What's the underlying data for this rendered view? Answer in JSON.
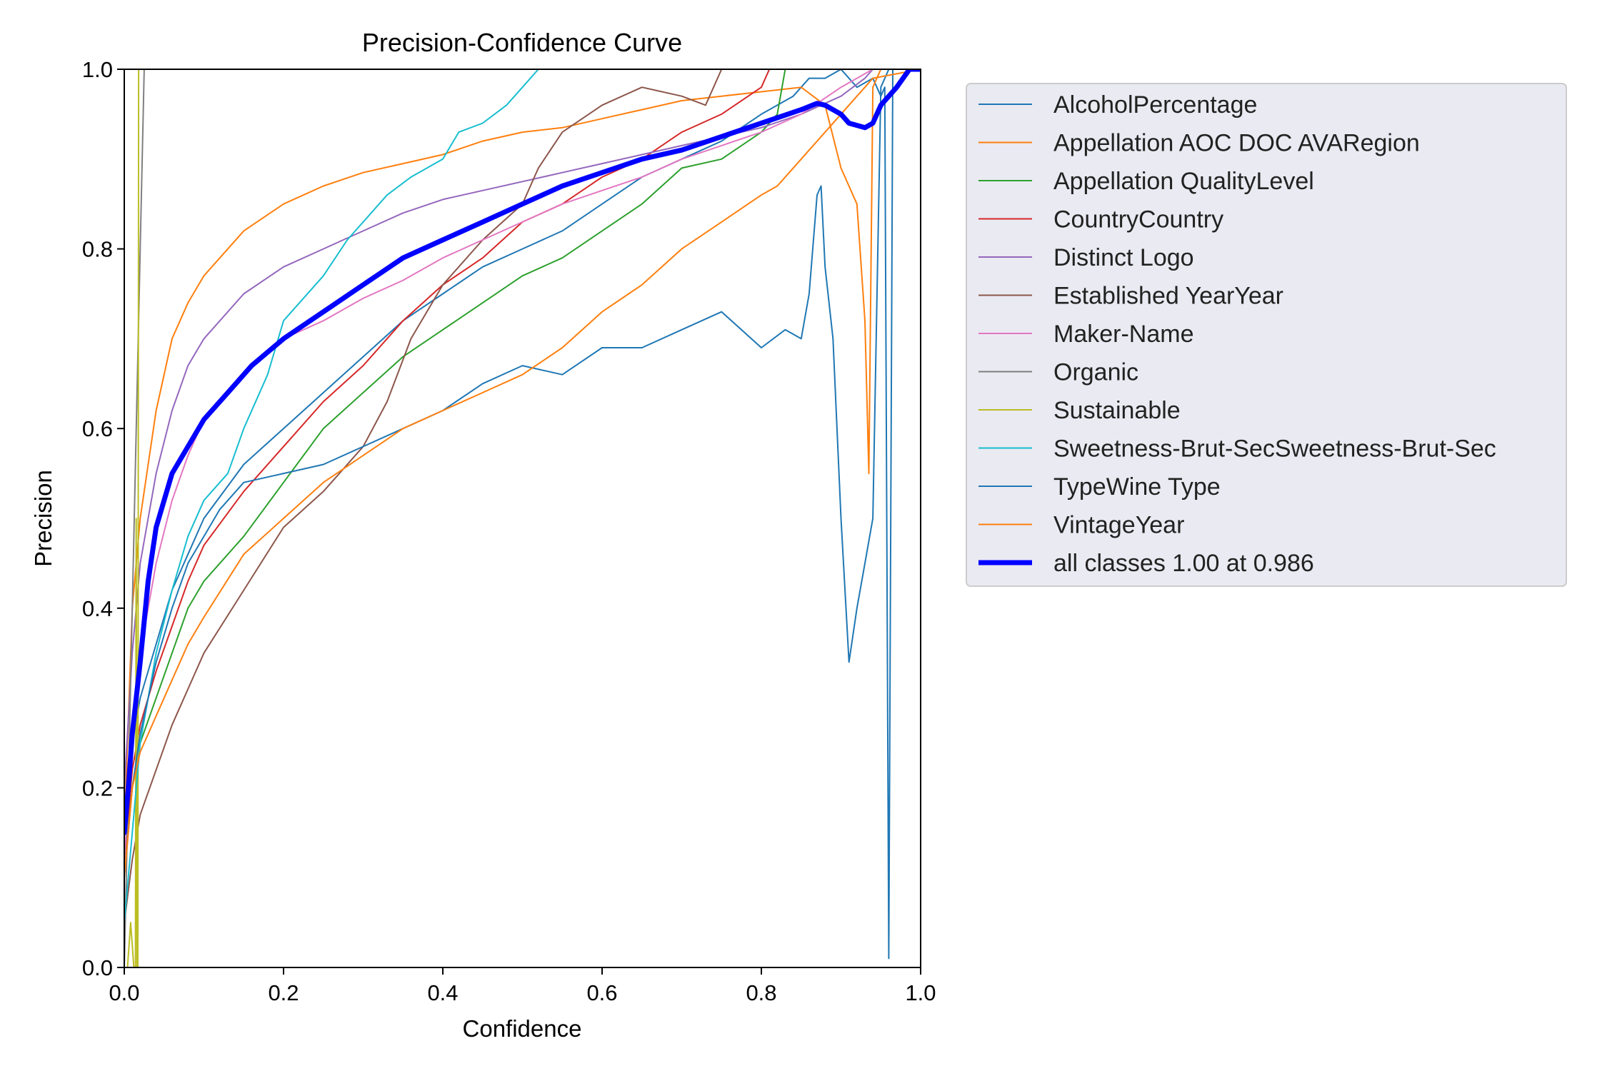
{
  "chart_data": {
    "type": "line",
    "title": "Precision-Confidence Curve",
    "xlabel": "Confidence",
    "ylabel": "Precision",
    "xlim": [
      0,
      1
    ],
    "ylim": [
      0,
      1
    ],
    "xticks": [
      "0.0",
      "0.2",
      "0.4",
      "0.6",
      "0.8",
      "1.0"
    ],
    "yticks": [
      "0.0",
      "0.2",
      "0.4",
      "0.6",
      "0.8",
      "1.0"
    ],
    "grid": false,
    "legend_position": "outside-right",
    "series": [
      {
        "name": "AlcoholPercentage",
        "color": "#1f77b4",
        "width": 2,
        "x": [
          0.0,
          0.01,
          0.02,
          0.04,
          0.06,
          0.08,
          0.1,
          0.15,
          0.2,
          0.25,
          0.3,
          0.35,
          0.4,
          0.45,
          0.5,
          0.55,
          0.6,
          0.65,
          0.7,
          0.75,
          0.8,
          0.84,
          0.86,
          0.88,
          0.9,
          0.92,
          0.94,
          0.95,
          0.955,
          0.96,
          0.965
        ],
        "y": [
          0.15,
          0.25,
          0.3,
          0.36,
          0.42,
          0.46,
          0.5,
          0.56,
          0.6,
          0.64,
          0.68,
          0.72,
          0.75,
          0.78,
          0.8,
          0.82,
          0.85,
          0.88,
          0.9,
          0.92,
          0.95,
          0.97,
          0.99,
          0.99,
          1.0,
          0.98,
          0.99,
          0.97,
          0.98,
          0.01,
          1.0
        ]
      },
      {
        "name": "Appellation AOC DOC AVARegion",
        "color": "#ff7f0e",
        "width": 2,
        "x": [
          0.0,
          0.01,
          0.02,
          0.04,
          0.06,
          0.08,
          0.1,
          0.15,
          0.2,
          0.25,
          0.3,
          0.35,
          0.4,
          0.45,
          0.5,
          0.55,
          0.6,
          0.65,
          0.7,
          0.75,
          0.8,
          0.85,
          0.88,
          0.9,
          0.92,
          0.93,
          0.935,
          0.94,
          0.95,
          1.0
        ],
        "y": [
          0.15,
          0.4,
          0.5,
          0.62,
          0.7,
          0.74,
          0.77,
          0.82,
          0.85,
          0.87,
          0.885,
          0.895,
          0.905,
          0.92,
          0.93,
          0.935,
          0.945,
          0.955,
          0.965,
          0.97,
          0.975,
          0.98,
          0.96,
          0.89,
          0.85,
          0.72,
          0.55,
          0.98,
          1.0,
          1.0
        ]
      },
      {
        "name": "Appellation QualityLevel",
        "color": "#2ca02c",
        "width": 2,
        "x": [
          0.0,
          0.01,
          0.02,
          0.04,
          0.06,
          0.08,
          0.1,
          0.15,
          0.2,
          0.25,
          0.3,
          0.35,
          0.4,
          0.45,
          0.5,
          0.55,
          0.6,
          0.65,
          0.7,
          0.75,
          0.8,
          0.82,
          0.83,
          1.0
        ],
        "y": [
          0.12,
          0.2,
          0.25,
          0.3,
          0.35,
          0.4,
          0.43,
          0.48,
          0.54,
          0.6,
          0.64,
          0.68,
          0.71,
          0.74,
          0.77,
          0.79,
          0.82,
          0.85,
          0.89,
          0.9,
          0.93,
          0.95,
          1.0,
          1.0
        ]
      },
      {
        "name": "CountryCountry",
        "color": "#d62728",
        "width": 2,
        "x": [
          0.0,
          0.01,
          0.02,
          0.04,
          0.06,
          0.08,
          0.1,
          0.15,
          0.2,
          0.25,
          0.3,
          0.35,
          0.4,
          0.45,
          0.5,
          0.55,
          0.6,
          0.65,
          0.7,
          0.75,
          0.8,
          0.81,
          1.0
        ],
        "y": [
          0.12,
          0.22,
          0.27,
          0.33,
          0.38,
          0.43,
          0.47,
          0.53,
          0.58,
          0.63,
          0.67,
          0.72,
          0.76,
          0.79,
          0.83,
          0.85,
          0.88,
          0.9,
          0.93,
          0.95,
          0.98,
          1.0,
          1.0
        ]
      },
      {
        "name": "Distinct Logo",
        "color": "#9467bd",
        "width": 2,
        "x": [
          0.0,
          0.01,
          0.02,
          0.04,
          0.06,
          0.08,
          0.1,
          0.15,
          0.2,
          0.25,
          0.3,
          0.35,
          0.4,
          0.45,
          0.5,
          0.55,
          0.6,
          0.65,
          0.7,
          0.75,
          0.8,
          0.85,
          0.9,
          0.93,
          0.94
        ],
        "y": [
          0.2,
          0.35,
          0.45,
          0.55,
          0.62,
          0.67,
          0.7,
          0.75,
          0.78,
          0.8,
          0.82,
          0.84,
          0.855,
          0.865,
          0.875,
          0.885,
          0.895,
          0.905,
          0.915,
          0.925,
          0.935,
          0.95,
          0.97,
          0.99,
          1.0
        ]
      },
      {
        "name": "Established YearYear",
        "color": "#8c564b",
        "width": 2,
        "x": [
          0.0,
          0.01,
          0.02,
          0.04,
          0.06,
          0.08,
          0.1,
          0.15,
          0.2,
          0.25,
          0.3,
          0.33,
          0.36,
          0.4,
          0.45,
          0.5,
          0.52,
          0.55,
          0.6,
          0.65,
          0.7,
          0.73,
          0.75,
          1.0
        ],
        "y": [
          0.05,
          0.12,
          0.17,
          0.22,
          0.27,
          0.31,
          0.35,
          0.42,
          0.49,
          0.53,
          0.58,
          0.63,
          0.7,
          0.76,
          0.81,
          0.85,
          0.89,
          0.93,
          0.96,
          0.98,
          0.97,
          0.96,
          1.0,
          1.0
        ]
      },
      {
        "name": "Maker-Name",
        "color": "#e377c2",
        "width": 2,
        "x": [
          0.0,
          0.01,
          0.02,
          0.04,
          0.06,
          0.08,
          0.1,
          0.15,
          0.2,
          0.25,
          0.3,
          0.35,
          0.4,
          0.45,
          0.5,
          0.55,
          0.6,
          0.65,
          0.7,
          0.75,
          0.8,
          0.85,
          0.9,
          0.94
        ],
        "y": [
          0.12,
          0.25,
          0.35,
          0.45,
          0.52,
          0.57,
          0.61,
          0.66,
          0.7,
          0.72,
          0.745,
          0.765,
          0.79,
          0.81,
          0.83,
          0.85,
          0.865,
          0.88,
          0.9,
          0.915,
          0.93,
          0.95,
          0.98,
          1.0
        ]
      },
      {
        "name": "Organic",
        "color": "#7f7f7f",
        "width": 2,
        "x": [
          0.0,
          0.01,
          0.02,
          0.025,
          0.03,
          0.03,
          1.0
        ],
        "y": [
          0.0,
          0.4,
          0.8,
          1.0,
          1.0,
          1.0,
          1.0
        ]
      },
      {
        "name": "Sustainable",
        "color": "#bcbd22",
        "width": 2,
        "x": [
          0.0,
          0.004,
          0.008,
          0.012,
          0.014,
          0.015,
          0.016,
          0.017,
          0.018,
          0.02,
          1.0
        ],
        "y": [
          0.0,
          0.0,
          0.05,
          0.0,
          0.0,
          0.5,
          0.0,
          0.0,
          1.0,
          1.0,
          1.0
        ]
      },
      {
        "name": "Sweetness-Brut-SecSweetness-Brut-Sec",
        "color": "#17becf",
        "width": 2,
        "x": [
          0.0,
          0.01,
          0.02,
          0.04,
          0.06,
          0.08,
          0.1,
          0.13,
          0.15,
          0.18,
          0.2,
          0.25,
          0.28,
          0.3,
          0.33,
          0.36,
          0.4,
          0.42,
          0.45,
          0.48,
          0.5,
          0.52,
          1.0
        ],
        "y": [
          0.05,
          0.15,
          0.25,
          0.35,
          0.42,
          0.48,
          0.52,
          0.55,
          0.6,
          0.66,
          0.72,
          0.77,
          0.81,
          0.83,
          0.86,
          0.88,
          0.9,
          0.93,
          0.94,
          0.96,
          0.98,
          1.0,
          1.0
        ]
      },
      {
        "name": "TypeWine Type",
        "color": "#1f77b4",
        "width": 2,
        "x": [
          0.0,
          0.01,
          0.02,
          0.04,
          0.06,
          0.08,
          0.1,
          0.12,
          0.15,
          0.2,
          0.25,
          0.3,
          0.35,
          0.4,
          0.45,
          0.5,
          0.55,
          0.6,
          0.65,
          0.7,
          0.75,
          0.8,
          0.83,
          0.85,
          0.86,
          0.87,
          0.875,
          0.88,
          0.89,
          0.9,
          0.91,
          0.92,
          0.93,
          0.94,
          0.95,
          0.96,
          1.0
        ],
        "y": [
          0.1,
          0.2,
          0.26,
          0.34,
          0.4,
          0.45,
          0.48,
          0.51,
          0.54,
          0.55,
          0.56,
          0.58,
          0.6,
          0.62,
          0.65,
          0.67,
          0.66,
          0.69,
          0.69,
          0.71,
          0.73,
          0.69,
          0.71,
          0.7,
          0.75,
          0.86,
          0.87,
          0.78,
          0.7,
          0.5,
          0.34,
          0.4,
          0.45,
          0.5,
          0.98,
          1.0,
          1.0
        ]
      },
      {
        "name": "VintageYear",
        "color": "#ff7f0e",
        "width": 2,
        "x": [
          0.0,
          0.01,
          0.02,
          0.04,
          0.06,
          0.08,
          0.1,
          0.15,
          0.2,
          0.25,
          0.3,
          0.35,
          0.4,
          0.45,
          0.5,
          0.55,
          0.6,
          0.65,
          0.7,
          0.75,
          0.8,
          0.82,
          0.84,
          0.86,
          0.88,
          0.9,
          0.92,
          0.93,
          0.94,
          1.0
        ],
        "y": [
          0.1,
          0.2,
          0.24,
          0.28,
          0.32,
          0.36,
          0.39,
          0.46,
          0.5,
          0.54,
          0.57,
          0.6,
          0.62,
          0.64,
          0.66,
          0.69,
          0.73,
          0.76,
          0.8,
          0.83,
          0.86,
          0.87,
          0.89,
          0.91,
          0.93,
          0.95,
          0.97,
          0.98,
          0.99,
          1.0
        ]
      },
      {
        "name": "all classes 1.00 at 0.986",
        "color": "#0000ff",
        "width": 7,
        "x": [
          0.0,
          0.005,
          0.01,
          0.02,
          0.03,
          0.04,
          0.06,
          0.08,
          0.1,
          0.13,
          0.16,
          0.2,
          0.25,
          0.3,
          0.35,
          0.4,
          0.45,
          0.5,
          0.55,
          0.6,
          0.65,
          0.7,
          0.75,
          0.8,
          0.85,
          0.87,
          0.88,
          0.9,
          0.91,
          0.93,
          0.94,
          0.95,
          0.97,
          0.986,
          1.0
        ],
        "y": [
          0.15,
          0.2,
          0.26,
          0.34,
          0.43,
          0.49,
          0.55,
          0.58,
          0.61,
          0.64,
          0.67,
          0.7,
          0.73,
          0.76,
          0.79,
          0.81,
          0.83,
          0.85,
          0.87,
          0.885,
          0.9,
          0.91,
          0.925,
          0.94,
          0.955,
          0.962,
          0.96,
          0.95,
          0.94,
          0.935,
          0.94,
          0.96,
          0.98,
          1.0,
          1.0
        ]
      }
    ]
  }
}
